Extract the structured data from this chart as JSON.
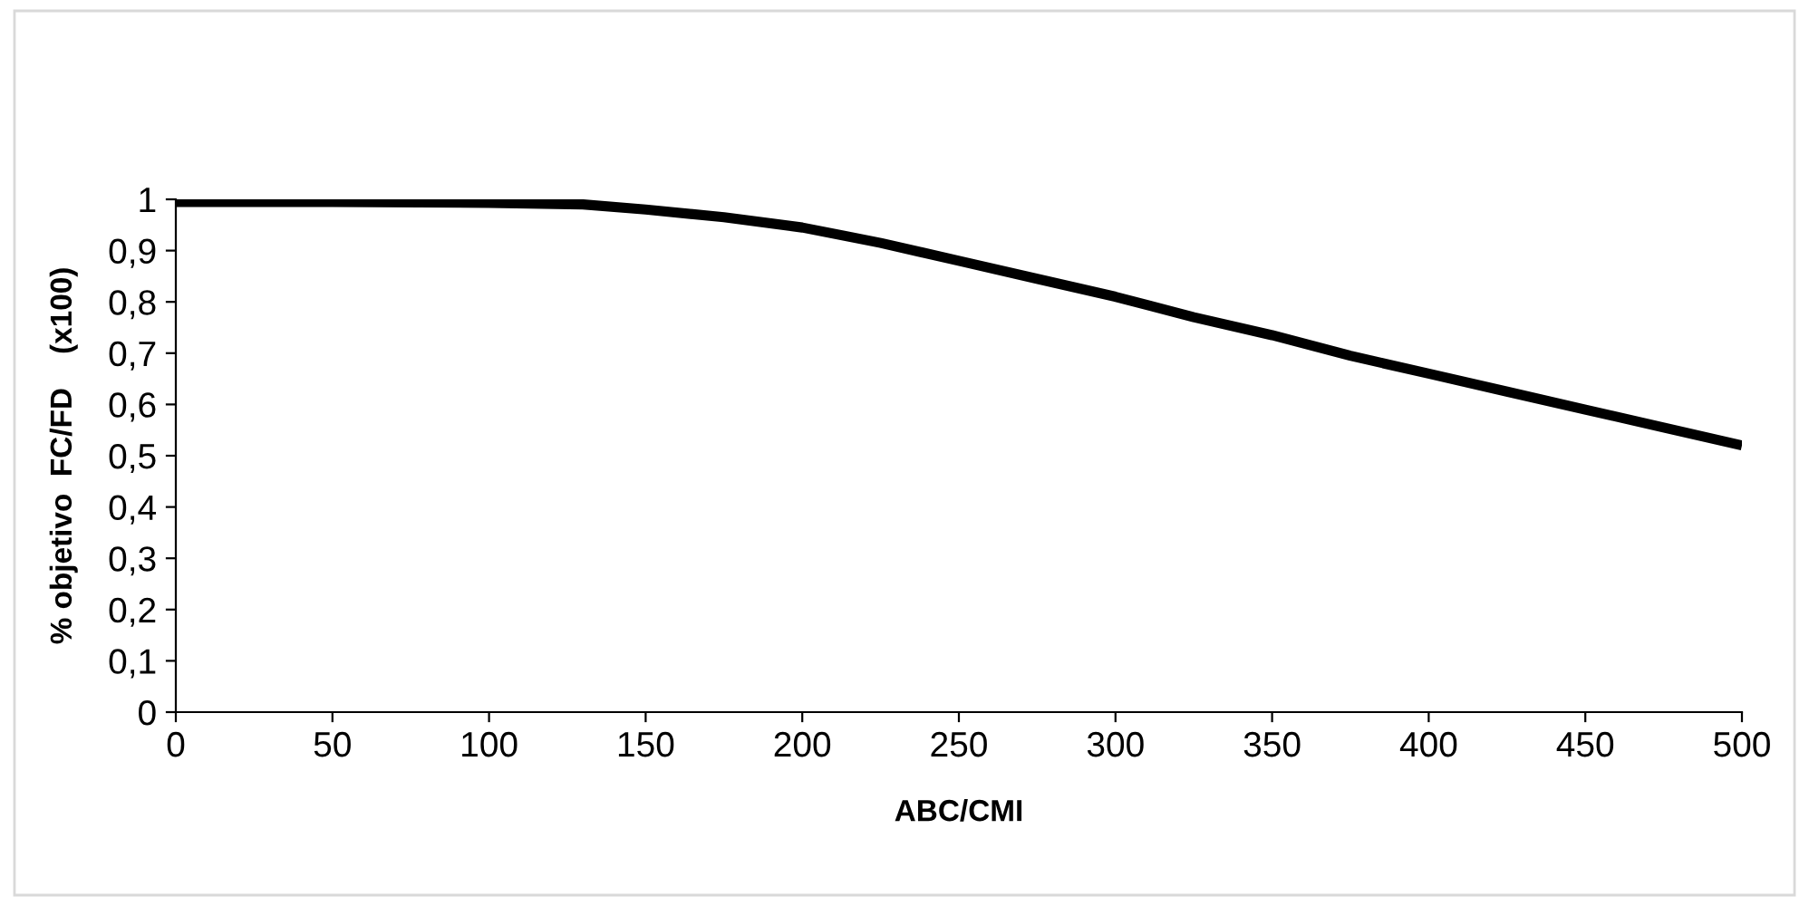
{
  "chart_data": {
    "type": "line",
    "xlabel": "ABC/CMI",
    "ylabel": "% objetivo  FC/FD    (x100)",
    "x": [
      0,
      50,
      100,
      130,
      150,
      175,
      200,
      225,
      250,
      275,
      300,
      325,
      350,
      375,
      400,
      425,
      450,
      475,
      500
    ],
    "series": [
      {
        "color": "#000000",
        "values": [
          0.995,
          0.995,
          0.993,
          0.99,
          0.98,
          0.965,
          0.945,
          0.915,
          0.88,
          0.845,
          0.81,
          0.77,
          0.735,
          0.695,
          0.66,
          0.625,
          0.59,
          0.555,
          0.52
        ]
      }
    ],
    "xlim": [
      0,
      500
    ],
    "xticks": [
      0,
      50,
      100,
      150,
      200,
      250,
      300,
      350,
      400,
      450,
      500
    ],
    "ylim": [
      0,
      1
    ],
    "yticks": [
      0,
      {
        "value": 0.1,
        "label": "0,1"
      },
      {
        "value": 0.2,
        "label": "0,2"
      },
      {
        "value": 0.3,
        "label": "0,3"
      },
      {
        "value": 0.4,
        "label": "0,4"
      },
      {
        "value": 0.5,
        "label": "0,5"
      },
      {
        "value": 0.6,
        "label": "0,6"
      },
      {
        "value": 0.7,
        "label": "0,7"
      },
      {
        "value": 0.8,
        "label": "0,8"
      },
      {
        "value": 0.9,
        "label": "0,9"
      },
      1
    ],
    "grid": false,
    "legend": false,
    "marker": "none",
    "line_style": "solid"
  }
}
